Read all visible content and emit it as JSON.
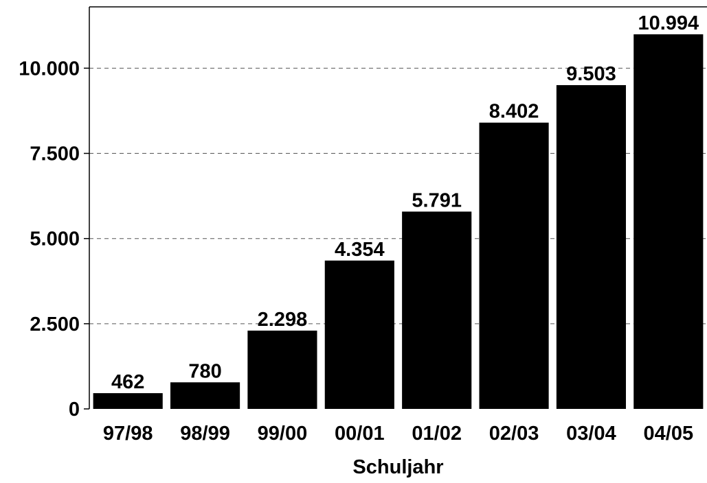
{
  "chart_data": {
    "type": "bar",
    "title": "",
    "xlabel": "Schuljahr",
    "ylabel": "",
    "categories": [
      "97/98",
      "98/99",
      "99/00",
      "00/01",
      "01/02",
      "02/03",
      "03/04",
      "04/05"
    ],
    "values": [
      462,
      780,
      2298,
      4354,
      5791,
      8402,
      9503,
      10994
    ],
    "value_labels": [
      "462",
      "780",
      "2.298",
      "4.354",
      "5.791",
      "8.402",
      "9.503",
      "10.994"
    ],
    "ylim": [
      0,
      11800
    ],
    "yticks": [
      0,
      2500,
      5000,
      7500,
      10000
    ],
    "ytick_labels": [
      "0",
      "2.500",
      "5.000",
      "7.500",
      "10.000"
    ],
    "grid": "horizontal dashed",
    "bar_color": "#000000",
    "grid_color": "#555555"
  }
}
